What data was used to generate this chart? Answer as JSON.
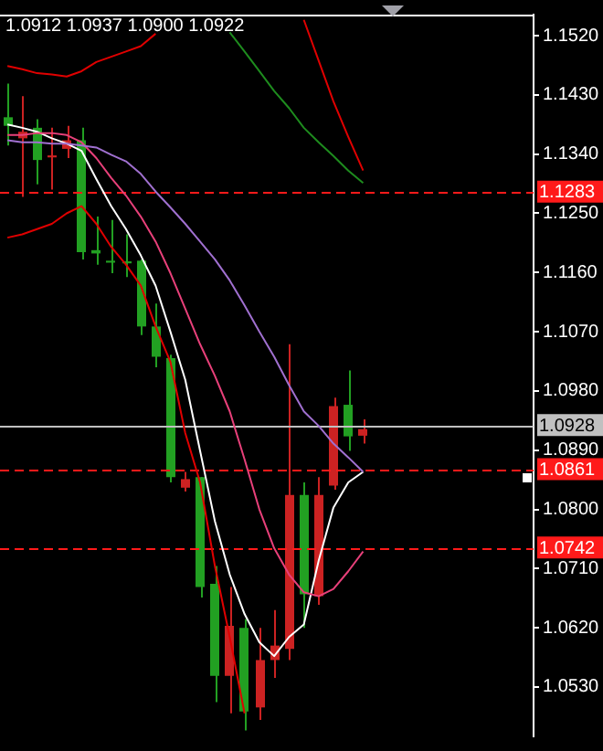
{
  "chart_data": {
    "type": "candlestick",
    "categories": [
      null,
      null,
      null,
      null,
      null,
      null,
      null,
      null,
      null,
      null,
      null,
      null,
      null,
      null,
      null,
      null,
      null,
      null,
      null,
      null,
      null,
      null,
      null,
      null,
      null,
      null,
      null,
      null,
      null,
      null,
      null,
      null,
      null,
      null,
      null,
      null
    ],
    "ohlc": [
      [
        1.1396,
        1.1447,
        1.1353,
        1.1383
      ],
      [
        1.1364,
        1.1428,
        1.1275,
        1.1374
      ],
      [
        1.138,
        1.1393,
        1.1294,
        1.1331
      ],
      [
        1.1335,
        1.138,
        1.1286,
        1.1338
      ],
      [
        1.1348,
        1.1383,
        1.1334,
        1.1361
      ],
      [
        1.1361,
        1.138,
        1.118,
        1.1191
      ],
      [
        1.1194,
        1.1245,
        1.1172,
        1.1189
      ],
      [
        1.1178,
        1.124,
        1.1159,
        1.1175
      ],
      [
        1.1177,
        1.1218,
        1.1153,
        1.1174
      ],
      [
        1.1178,
        1.118,
        1.1065,
        1.1078
      ],
      [
        1.1078,
        1.1113,
        1.1016,
        1.1032
      ],
      [
        1.103,
        1.1035,
        1.0841,
        1.0849
      ],
      [
        1.0833,
        1.0857,
        1.0827,
        1.0846
      ],
      [
        1.0849,
        1.0849,
        1.0666,
        1.0682
      ],
      [
        1.0687,
        1.0714,
        1.0507,
        1.0547
      ],
      [
        1.0547,
        1.0682,
        1.049,
        1.0623
      ],
      [
        1.062,
        1.0633,
        1.0464,
        1.0493
      ],
      [
        1.0499,
        1.062,
        1.048,
        1.0571
      ],
      [
        1.0571,
        1.0647,
        1.0544,
        1.0593
      ],
      [
        1.0588,
        1.1051,
        1.0571,
        1.0822
      ],
      [
        1.0822,
        1.0841,
        1.062,
        1.0671
      ],
      [
        1.0668,
        1.0849,
        1.0655,
        1.0822
      ],
      [
        1.0836,
        1.097,
        1.083,
        1.0957
      ],
      [
        1.0959,
        1.1011,
        1.0889,
        1.0911
      ],
      [
        1.0912,
        1.0937,
        1.09,
        1.0922
      ],
      null,
      null,
      null,
      null,
      null,
      null,
      null,
      null,
      null,
      null,
      null
    ],
    "colors": [
      "#22a022",
      "#cc2222",
      "#22a022",
      "#cc2222",
      "#cc2222",
      "#22a022",
      "#22a022",
      "#22a022",
      "#22a022",
      "#22a022",
      "#22a022",
      "#22a022",
      "#cc2222",
      "#22a022",
      "#22a022",
      "#cc2222",
      "#22a022",
      "#cc2222",
      "#cc2222",
      "#cc2222",
      "#22a022",
      "#cc2222",
      "#cc2222",
      "#22a022",
      "#cc2222",
      null,
      null,
      null,
      null,
      null,
      null,
      null,
      null,
      null,
      null,
      null
    ],
    "series": [
      {
        "type": "line",
        "color": "#e00000",
        "values": [
          1.1474,
          1.1469,
          1.1463,
          1.1461,
          1.1458,
          1.1466,
          1.148,
          1.1488,
          1.1496,
          1.1504,
          1.1523,
          null,
          null,
          null,
          null,
          null,
          null,
          null,
          null,
          null,
          1.1544,
          1.1482,
          1.142,
          1.1366,
          1.1315,
          null,
          null,
          null,
          null,
          null,
          null,
          null,
          null,
          null,
          null,
          null
        ]
      },
      {
        "type": "line",
        "color": "#e00000",
        "values": [
          1.1213,
          1.1218,
          1.1226,
          1.1234,
          1.125,
          1.1261,
          1.1234,
          1.1199,
          1.1172,
          1.114,
          1.1078,
          1.1024,
          1.0916,
          1.0841,
          1.0714,
          1.0606,
          1.049,
          null,
          null,
          null,
          null,
          null,
          null,
          null,
          null,
          null,
          null,
          null,
          null,
          null,
          null,
          null,
          null,
          null,
          null,
          null
        ]
      },
      {
        "type": "line",
        "color": "#1e8c1e",
        "values": [
          null,
          null,
          null,
          null,
          null,
          null,
          null,
          null,
          null,
          null,
          null,
          null,
          null,
          null,
          null,
          1.1525,
          1.1496,
          1.1466,
          1.1436,
          1.141,
          1.138,
          1.1358,
          1.1337,
          1.1315,
          1.1296,
          null,
          null,
          null,
          null,
          null,
          null,
          null,
          null,
          null,
          null,
          null
        ]
      },
      {
        "type": "line",
        "color": "#a070d0",
        "values": [
          1.1361,
          1.1358,
          1.1358,
          1.1356,
          1.1356,
          1.1353,
          1.135,
          1.1339,
          1.1329,
          1.131,
          1.1283,
          1.1259,
          1.1234,
          1.1207,
          1.118,
          1.1148,
          1.111,
          1.107,
          1.1032,
          1.0989,
          1.0949,
          1.0927,
          1.09,
          1.0879,
          1.0857,
          null,
          null,
          null,
          null,
          null,
          null,
          null,
          null,
          null,
          null,
          null
        ]
      },
      {
        "type": "line",
        "color": "#e8407a",
        "values": [
          1.1369,
          1.1369,
          1.1372,
          1.1372,
          1.1369,
          1.1358,
          1.1334,
          1.1304,
          1.1277,
          1.1245,
          1.1207,
          1.1159,
          1.1105,
          1.1051,
          1.1003,
          1.0949,
          1.0876,
          1.08,
          1.0741,
          1.0701,
          1.0674,
          1.0668,
          1.0679,
          1.0706,
          1.0736,
          null,
          null,
          null,
          null,
          null,
          null,
          null,
          null,
          null,
          null,
          null
        ]
      },
      {
        "type": "line",
        "color": "#ffffff",
        "values": [
          1.1385,
          1.138,
          1.1374,
          1.1364,
          1.1356,
          1.1345,
          1.1302,
          1.1261,
          1.1226,
          1.1186,
          1.114,
          1.107,
          1.0997,
          1.0889,
          1.0782,
          1.0701,
          1.0641,
          1.0598,
          1.0577,
          1.0606,
          1.0625,
          1.0722,
          1.0803,
          1.0841,
          1.0857,
          null,
          null,
          null,
          null,
          null,
          null,
          null,
          null,
          null,
          null,
          null
        ]
      }
    ],
    "ylim": [
      1.0455,
      1.1552
    ],
    "yticks": [
      {
        "value": 1.152,
        "label": "1.1520"
      },
      {
        "value": 1.143,
        "label": "1.1430"
      },
      {
        "value": 1.134,
        "label": "1.1340"
      },
      {
        "value": 1.125,
        "label": "1.1250"
      },
      {
        "value": 1.116,
        "label": "1.1160"
      },
      {
        "value": 1.107,
        "label": "1.1070"
      },
      {
        "value": 1.098,
        "label": "1.0980"
      },
      {
        "value": 1.089,
        "label": "1.0890"
      },
      {
        "value": 1.08,
        "label": "1.0800"
      },
      {
        "value": 1.071,
        "label": "1.0710"
      },
      {
        "value": 1.062,
        "label": "1.0620"
      },
      {
        "value": 1.053,
        "label": "1.0530"
      }
    ],
    "ref_lines": [
      {
        "axis": "y",
        "value": 1.1283,
        "label": "1.1283",
        "color": "#ff1a1a",
        "line_style": "dashed"
      },
      {
        "axis": "y",
        "value": 1.0928,
        "label": "1.0928",
        "color": "#c0c0c0",
        "line_style": "solid"
      },
      {
        "axis": "y",
        "value": 1.0861,
        "label": "1.0861",
        "color": "#ff1a1a",
        "line_style": "dashed"
      },
      {
        "axis": "y",
        "value": 1.0742,
        "label": "1.0742",
        "color": "#ff1a1a",
        "line_style": "dashed"
      }
    ],
    "annotations": [
      "1.0912 1.0937 1.0900 1.0922"
    ],
    "tick_labels": "y",
    "marker": "none",
    "line_style": "solid"
  }
}
